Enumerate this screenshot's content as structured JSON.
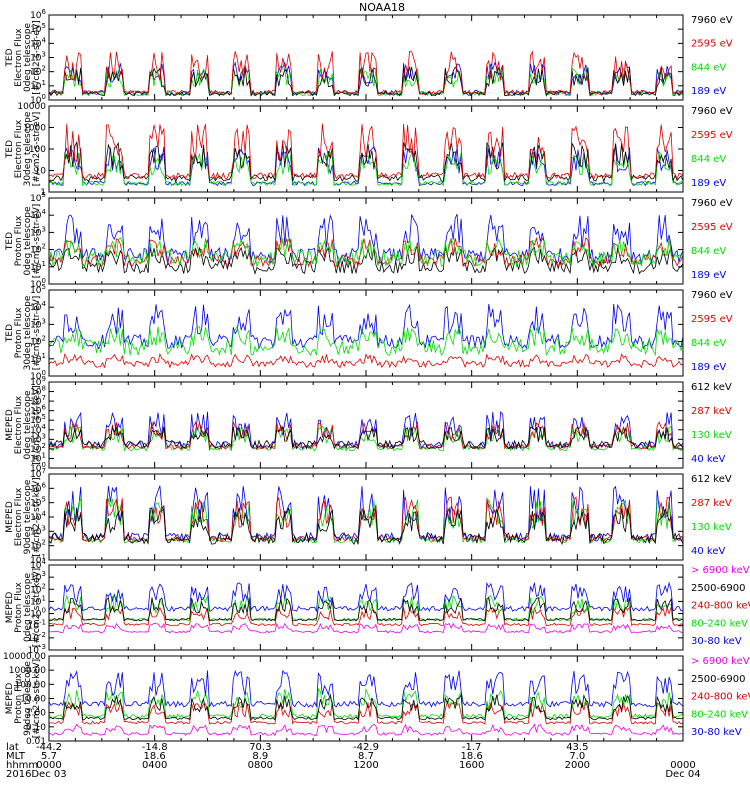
{
  "title": "NOAA18",
  "colors": {
    "black": "#000000",
    "red": "#dd0000",
    "green": "#00dd00",
    "blue": "#0000ee",
    "magenta": "#ee00ee"
  },
  "chart_data": [
    {
      "type": "line",
      "title": "NOAA18",
      "ylabel_lines": [
        "TED",
        "Electron Flux",
        "0deg telescope",
        "[#/cm2-s-str-eV]"
      ],
      "yscale": "log",
      "ylim": [
        1,
        1000000
      ],
      "ytick_labels": [
        "10^0",
        "10^1",
        "10^2",
        "10^3",
        "10^4",
        "10^5",
        "10^6"
      ],
      "series": [
        {
          "name": "7960 eV",
          "color": "black"
        },
        {
          "name": "2595 eV",
          "color": "red"
        },
        {
          "name": "844 eV",
          "color": "green"
        },
        {
          "name": "189 eV",
          "color": "blue"
        }
      ]
    },
    {
      "type": "line",
      "ylabel_lines": [
        "TED",
        "Electron Flux",
        "30deg telescope",
        "[#/cm2-s-str-eV]"
      ],
      "yscale": "log",
      "ylim": [
        1,
        10000
      ],
      "ytick_labels": [
        "1",
        "10",
        "100",
        "1000",
        "10000"
      ],
      "series": [
        {
          "name": "7960 eV",
          "color": "black"
        },
        {
          "name": "2595 eV",
          "color": "red"
        },
        {
          "name": "844 eV",
          "color": "green"
        },
        {
          "name": "189 eV",
          "color": "blue"
        }
      ]
    },
    {
      "type": "line",
      "ylabel_lines": [
        "TED",
        "Proton Flux",
        "0deg telescope",
        "[#/cm2-s-str-eV]"
      ],
      "yscale": "log",
      "ylim": [
        1,
        100000
      ],
      "ytick_labels": [
        "10^0",
        "10^1",
        "10^2",
        "10^3",
        "10^4",
        "10^5"
      ],
      "series": [
        {
          "name": "7960 eV",
          "color": "black"
        },
        {
          "name": "2595 eV",
          "color": "red"
        },
        {
          "name": "844 eV",
          "color": "green"
        },
        {
          "name": "189 eV",
          "color": "blue"
        }
      ]
    },
    {
      "type": "line",
      "ylabel_lines": [
        "TED",
        "Proton Flux",
        "30deg telescope",
        "[#/cm2-s-str-eV]"
      ],
      "yscale": "log",
      "ylim": [
        1,
        100000
      ],
      "ytick_labels": [
        "10^0",
        "10^1",
        "10^2",
        "10^3",
        "10^4",
        "10^5"
      ],
      "series": [
        {
          "name": "7960 eV",
          "color": "black"
        },
        {
          "name": "2595 eV",
          "color": "red"
        },
        {
          "name": "844 eV",
          "color": "green"
        },
        {
          "name": "189 eV",
          "color": "blue"
        }
      ]
    },
    {
      "type": "line",
      "ylabel_lines": [
        "MEPED",
        "Electron Flux",
        "0deg telescope",
        "[#/cm2-s-str-keV]"
      ],
      "yscale": "log",
      "ylim": [
        1,
        1000000000
      ],
      "ytick_labels": [
        "10^0",
        "10^1",
        "10^2",
        "10^3",
        "10^4",
        "10^5",
        "10^6",
        "10^7",
        "10^8",
        "10^9"
      ],
      "series": [
        {
          "name": "612 keV",
          "color": "black"
        },
        {
          "name": "287 keV",
          "color": "red"
        },
        {
          "name": "130 keV",
          "color": "green"
        },
        {
          "name": "40 keV",
          "color": "blue"
        }
      ]
    },
    {
      "type": "line",
      "ylabel_lines": [
        "MEPED",
        "Electron Flux",
        "90deg telescope",
        "[#/cm2-s-str-keV]"
      ],
      "yscale": "log",
      "ylim": [
        10,
        10000000
      ],
      "ytick_labels": [
        "10^1",
        "10^2",
        "10^3",
        "10^4",
        "10^5",
        "10^6",
        "10^7"
      ],
      "series": [
        {
          "name": "612 keV",
          "color": "black"
        },
        {
          "name": "287 keV",
          "color": "red"
        },
        {
          "name": "130 keV",
          "color": "green"
        },
        {
          "name": "40 keV",
          "color": "blue"
        }
      ]
    },
    {
      "type": "line",
      "ylabel_lines": [
        "MEPED",
        "Proton Flux",
        "0deg telescope",
        "[#/cm2-s-str-keV]"
      ],
      "yscale": "log",
      "ylim": [
        0.001,
        10000
      ],
      "ytick_labels": [
        "10^-3",
        "10^-2",
        "10^-1",
        "10^0",
        "10^1",
        "10^2",
        "10^3",
        "10^4"
      ],
      "series": [
        {
          "name": "> 6900 keV",
          "color": "magenta"
        },
        {
          "name": "2500-6900",
          "color": "black"
        },
        {
          "name": "240-800 keV",
          "color": "red"
        },
        {
          "name": "80-240 keV",
          "color": "green"
        },
        {
          "name": "30-80 keV",
          "color": "blue"
        }
      ]
    },
    {
      "type": "line",
      "ylabel_lines": [
        "MEPED",
        "Proton Flux",
        "90deg telescope",
        "[#/cm2-s-str-keV]"
      ],
      "yscale": "log",
      "ylim": [
        0.01,
        10000
      ],
      "ytick_labels": [
        "0.01",
        "0.10",
        "1.00",
        "10.00",
        "100.00",
        "1000.00",
        "10000.00"
      ],
      "series": [
        {
          "name": "> 6900 keV",
          "color": "magenta"
        },
        {
          "name": "2500-6900",
          "color": "black"
        },
        {
          "name": "240-800 keV",
          "color": "red"
        },
        {
          "name": "80-240 keV",
          "color": "green"
        },
        {
          "name": "30-80 keV",
          "color": "blue"
        }
      ]
    }
  ],
  "time_axis": {
    "xlim_hours": [
      0,
      24
    ],
    "row_labels": [
      "lat",
      "MLT",
      "hhmm",
      "2016"
    ],
    "ticks": [
      {
        "hour": 0,
        "lat": "-44.2",
        "mlt": "5.7",
        "hhmm": "0000",
        "date": "Dec 03"
      },
      {
        "hour": 4,
        "lat": "-14.8",
        "mlt": "18.6",
        "hhmm": "0400",
        "date": ""
      },
      {
        "hour": 8,
        "lat": "70.3",
        "mlt": "8.9",
        "hhmm": "0800",
        "date": ""
      },
      {
        "hour": 12,
        "lat": "-42.9",
        "mlt": "8.7",
        "hhmm": "1200",
        "date": ""
      },
      {
        "hour": 16,
        "lat": "-1.7",
        "mlt": "18.6",
        "hhmm": "1600",
        "date": ""
      },
      {
        "hour": 20,
        "lat": "43.5",
        "mlt": "7.0",
        "hhmm": "2000",
        "date": ""
      },
      {
        "hour": 24,
        "lat": "",
        "mlt": "",
        "hhmm": "0000",
        "date": "Dec 04"
      }
    ]
  }
}
